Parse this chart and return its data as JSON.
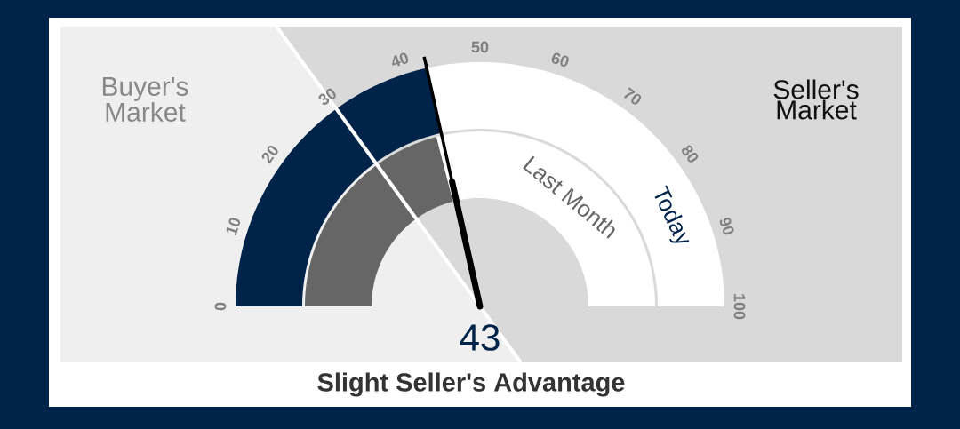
{
  "chart_data": {
    "type": "donut",
    "title": "Slight Seller's Advantage",
    "series": [
      {
        "name": "Last Month",
        "values": [
          42,
          58
        ],
        "colors": [
          "#666666",
          "#ffffff"
        ]
      },
      {
        "name": "Today",
        "values": [
          43,
          57
        ],
        "colors": [
          "#00234a",
          "#ffffff"
        ]
      }
    ],
    "annotations": [
      "Buyer's Market",
      "Seller's Market",
      "43",
      "0",
      "10",
      "20",
      "30",
      "40",
      "50",
      "60",
      "70",
      "80",
      "90",
      "100"
    ]
  }
}
